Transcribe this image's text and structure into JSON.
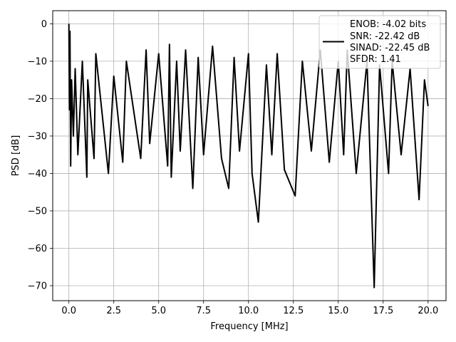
{
  "chart_data": {
    "type": "line",
    "title": "",
    "xlabel": "Frequency [MHz]",
    "ylabel": "PSD [dB]",
    "xlim": [
      -0.9,
      21.0
    ],
    "ylim": [
      -74.0,
      3.5
    ],
    "xticks": [
      0.0,
      2.5,
      5.0,
      7.5,
      10.0,
      12.5,
      15.0,
      17.5,
      20.0
    ],
    "xtick_labels": [
      "0.0",
      "2.5",
      "5.0",
      "7.5",
      "10.0",
      "12.5",
      "15.0",
      "17.5",
      "20.0"
    ],
    "yticks": [
      0,
      -10,
      -20,
      -30,
      -40,
      -50,
      -60,
      -70
    ],
    "ytick_labels": [
      "0",
      "−10",
      "−20",
      "−30",
      "−40",
      "−50",
      "−60",
      "−70"
    ],
    "grid": true,
    "legend_position": "top-right",
    "legend_lines": [
      "ENOB: -4.02 bits",
      "SNR: -22.42 dB",
      "SINAD: -22.45 dB",
      "SFDR: 1.41"
    ],
    "line_color": "#000000",
    "series": [
      {
        "x": [
          0.0,
          0.03,
          0.06,
          0.1,
          0.15,
          0.25,
          0.35,
          0.5,
          0.75,
          1.0,
          1.05,
          1.4,
          1.5,
          2.2,
          2.5,
          3.0,
          3.2,
          4.0,
          4.3,
          4.5,
          5.0,
          5.5,
          5.6,
          5.7,
          6.0,
          6.2,
          6.5,
          6.9,
          7.2,
          7.5,
          8.0,
          8.5,
          8.9,
          9.2,
          9.5,
          10.0,
          10.2,
          10.55,
          11.0,
          11.3,
          11.6,
          12.0,
          12.6,
          13.0,
          13.5,
          14.0,
          14.5,
          15.0,
          15.3,
          15.5,
          16.0,
          16.6,
          17.0,
          17.3,
          17.8,
          18.0,
          18.5,
          19.0,
          19.5,
          19.8,
          20.0
        ],
        "y": [
          0.0,
          -23.0,
          -2.0,
          -38.0,
          -15.0,
          -30.0,
          -12.0,
          -35.0,
          -10.0,
          -41.0,
          -15.0,
          -36.0,
          -8.0,
          -40.0,
          -14.0,
          -37.0,
          -10.0,
          -36.0,
          -7.0,
          -32.0,
          -8.0,
          -38.0,
          -5.5,
          -41.0,
          -10.0,
          -34.0,
          -7.0,
          -44.0,
          -9.0,
          -35.0,
          -6.0,
          -36.0,
          -44.0,
          -9.0,
          -34.0,
          -8.0,
          -40.0,
          -53.0,
          -11.0,
          -35.0,
          -8.0,
          -39.0,
          -46.0,
          -10.0,
          -34.0,
          -7.0,
          -37.0,
          -10.0,
          -35.0,
          -7.0,
          -40.0,
          -10.0,
          -70.5,
          -11.0,
          -40.0,
          -10.0,
          -35.0,
          -12.0,
          -47.0,
          -15.0,
          -22.0
        ]
      }
    ]
  }
}
